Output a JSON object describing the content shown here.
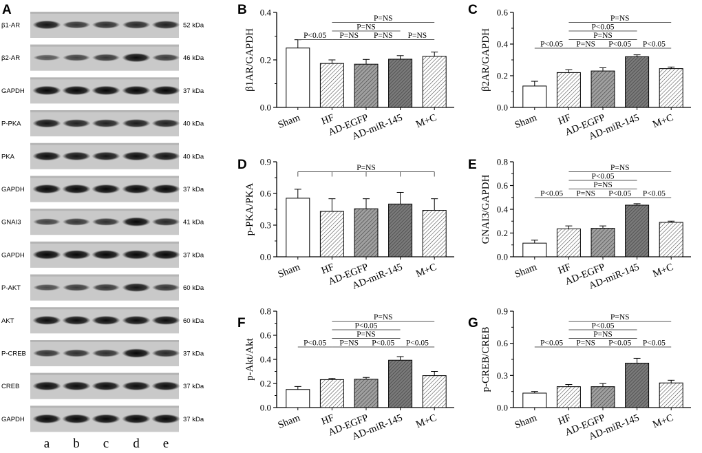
{
  "figure_letter": "A",
  "blot": {
    "rows": [
      {
        "name": "β1-AR",
        "size": "52 kDa",
        "intensity": [
          0.85,
          0.6,
          0.65,
          0.7,
          0.75
        ]
      },
      {
        "name": "β2-AR",
        "size": "46 kDa",
        "intensity": [
          0.35,
          0.5,
          0.6,
          0.9,
          0.55
        ]
      },
      {
        "name": "GAPDH",
        "size": "37 kDa",
        "intensity": [
          0.95,
          0.95,
          0.95,
          0.95,
          0.95
        ]
      },
      {
        "name": "P-PKA",
        "size": "40 kDa",
        "intensity": [
          0.85,
          0.75,
          0.75,
          0.8,
          0.75
        ]
      },
      {
        "name": "PKA",
        "size": "40 kDa",
        "intensity": [
          0.9,
          0.85,
          0.85,
          0.9,
          0.85
        ]
      },
      {
        "name": "GAPDH",
        "size": "37 kDa",
        "intensity": [
          0.95,
          0.95,
          0.95,
          0.95,
          0.95
        ]
      },
      {
        "name": "GNAI3",
        "size": "41 kDa",
        "intensity": [
          0.5,
          0.6,
          0.65,
          0.95,
          0.7
        ]
      },
      {
        "name": "GAPDH",
        "size": "37 kDa",
        "intensity": [
          0.95,
          0.95,
          0.95,
          0.95,
          0.95
        ]
      },
      {
        "name": "P-AKT",
        "size": "60 kDa",
        "intensity": [
          0.45,
          0.55,
          0.6,
          0.85,
          0.6
        ]
      },
      {
        "name": "AKT",
        "size": "60 kDa",
        "intensity": [
          0.9,
          0.9,
          0.9,
          0.9,
          0.9
        ]
      },
      {
        "name": "P-CREB",
        "size": "37 kDa",
        "intensity": [
          0.6,
          0.65,
          0.65,
          0.95,
          0.7
        ]
      },
      {
        "name": "CREB",
        "size": "37 kDa",
        "intensity": [
          0.9,
          0.9,
          0.9,
          0.9,
          0.9
        ]
      },
      {
        "name": "GAPDH",
        "size": "37 kDa",
        "intensity": [
          0.95,
          0.95,
          0.95,
          0.95,
          0.95
        ]
      }
    ],
    "lanes": [
      "a",
      "b",
      "c",
      "d",
      "e"
    ]
  },
  "chart_data": [
    {
      "panel": "B",
      "type": "bar",
      "ylabel": "β1AR/GAPDH",
      "categories": [
        "Sham",
        "HF",
        "AD-EGFP",
        "AD-miR-145",
        "M+C"
      ],
      "values": [
        0.25,
        0.185,
        0.182,
        0.203,
        0.215
      ],
      "errors": [
        0.035,
        0.015,
        0.02,
        0.015,
        0.018
      ],
      "ylim": [
        0,
        0.4
      ],
      "yticks": [
        "0.0",
        "0.2",
        "0.4"
      ],
      "annotations": [
        {
          "text": "P=NS",
          "from": 1,
          "to": 4,
          "level": 3
        },
        {
          "text": "P=NS",
          "from": 1,
          "to": 3,
          "level": 2
        },
        {
          "text": "P<0.05",
          "from": 0,
          "to": 1,
          "level": 1
        },
        {
          "text": "P=NS",
          "from": 1,
          "to": 2,
          "level": 1
        },
        {
          "text": "P=NS",
          "from": 2,
          "to": 3,
          "level": 1
        },
        {
          "text": "P=NS",
          "from": 3,
          "to": 4,
          "level": 1
        }
      ]
    },
    {
      "panel": "C",
      "type": "bar",
      "ylabel": "β2AR/GAPDH",
      "categories": [
        "Sham",
        "HF",
        "AD-EGFP",
        "AD-miR-145",
        "M+C"
      ],
      "values": [
        0.135,
        0.22,
        0.23,
        0.32,
        0.245
      ],
      "errors": [
        0.03,
        0.018,
        0.02,
        0.012,
        0.01
      ],
      "ylim": [
        0,
        0.6
      ],
      "yticks": [
        "0.0",
        "0.2",
        "0.4",
        "0.6"
      ],
      "annotations": [
        {
          "text": "P=NS",
          "from": 1,
          "to": 4,
          "level": 4
        },
        {
          "text": "P<0.05",
          "from": 1,
          "to": 3,
          "level": 3
        },
        {
          "text": "P=NS",
          "from": 1,
          "to": 3,
          "level": 2
        },
        {
          "text": "P<0.05",
          "from": 0,
          "to": 1,
          "level": 1
        },
        {
          "text": "P=NS",
          "from": 1,
          "to": 2,
          "level": 1
        },
        {
          "text": "P<0.05",
          "from": 2,
          "to": 3,
          "level": 1
        },
        {
          "text": "P<0.05",
          "from": 3,
          "to": 4,
          "level": 1
        }
      ]
    },
    {
      "panel": "D",
      "type": "bar",
      "ylabel": "p-PKA/PKA",
      "categories": [
        "Sham",
        "HF",
        "AD-EGFP",
        "AD-miR-145",
        "M+C"
      ],
      "values": [
        0.555,
        0.43,
        0.455,
        0.5,
        0.44
      ],
      "errors": [
        0.085,
        0.12,
        0.095,
        0.11,
        0.11
      ],
      "ylim": [
        0,
        0.9
      ],
      "yticks": [
        "0.0",
        "0.3",
        "0.6",
        "0.9"
      ],
      "annotations": [
        {
          "text": "P=NS",
          "from": 0,
          "to": 4,
          "level": 1,
          "ticks": [
            0,
            1,
            2,
            3,
            4
          ]
        }
      ]
    },
    {
      "panel": "E",
      "type": "bar",
      "ylabel": "GNAI3/GAPDH",
      "categories": [
        "Sham",
        "HF",
        "AD-EGFP",
        "AD-miR-145",
        "M+C"
      ],
      "values": [
        0.115,
        0.235,
        0.24,
        0.435,
        0.29
      ],
      "errors": [
        0.025,
        0.025,
        0.02,
        0.012,
        0.01
      ],
      "ylim": [
        0,
        0.8
      ],
      "yticks": [
        "0.0",
        "0.2",
        "0.4",
        "0.6",
        "0.8"
      ],
      "annotations": [
        {
          "text": "P=NS",
          "from": 1,
          "to": 4,
          "level": 4
        },
        {
          "text": "P<0.05",
          "from": 1,
          "to": 3,
          "level": 3
        },
        {
          "text": "P=NS",
          "from": 1,
          "to": 3,
          "level": 2
        },
        {
          "text": "P<0.05",
          "from": 0,
          "to": 1,
          "level": 1
        },
        {
          "text": "P=NS",
          "from": 1,
          "to": 2,
          "level": 1
        },
        {
          "text": "P<0.05",
          "from": 2,
          "to": 3,
          "level": 1
        },
        {
          "text": "P<0.05",
          "from": 3,
          "to": 4,
          "level": 1
        }
      ]
    },
    {
      "panel": "F",
      "type": "bar",
      "ylabel": "p-Akt/Akt",
      "categories": [
        "Sham",
        "HF",
        "AD-EGFP",
        "AD-miR-145",
        "M+C"
      ],
      "values": [
        0.15,
        0.232,
        0.235,
        0.393,
        0.265
      ],
      "errors": [
        0.025,
        0.01,
        0.015,
        0.03,
        0.035
      ],
      "ylim": [
        0,
        0.8
      ],
      "yticks": [
        "0.0",
        "0.2",
        "0.4",
        "0.6",
        "0.8"
      ],
      "annotations": [
        {
          "text": "P=NS",
          "from": 1,
          "to": 4,
          "level": 4
        },
        {
          "text": "P<0.05",
          "from": 1,
          "to": 3,
          "level": 3
        },
        {
          "text": "P=NS",
          "from": 1,
          "to": 3,
          "level": 2
        },
        {
          "text": "P<0.05",
          "from": 0,
          "to": 1,
          "level": 1
        },
        {
          "text": "P=NS",
          "from": 1,
          "to": 2,
          "level": 1
        },
        {
          "text": "P<0.05",
          "from": 2,
          "to": 3,
          "level": 1
        },
        {
          "text": "P<0.05",
          "from": 3,
          "to": 4,
          "level": 1
        }
      ]
    },
    {
      "panel": "G",
      "type": "bar",
      "ylabel": "p-CREB/CREB",
      "categories": [
        "Sham",
        "HF",
        "AD-EGFP",
        "AD-miR-145",
        "M+C"
      ],
      "values": [
        0.135,
        0.195,
        0.195,
        0.415,
        0.23
      ],
      "errors": [
        0.015,
        0.02,
        0.03,
        0.045,
        0.025
      ],
      "ylim": [
        0,
        0.9
      ],
      "yticks": [
        "0.0",
        "0.3",
        "0.6",
        "0.9"
      ],
      "annotations": [
        {
          "text": "P=NS",
          "from": 1,
          "to": 4,
          "level": 4
        },
        {
          "text": "P<0.05",
          "from": 1,
          "to": 3,
          "level": 3
        },
        {
          "text": "P=NS",
          "from": 1,
          "to": 3,
          "level": 2
        },
        {
          "text": "P<0.05",
          "from": 0,
          "to": 1,
          "level": 1
        },
        {
          "text": "P=NS",
          "from": 1,
          "to": 2,
          "level": 1
        },
        {
          "text": "P<0.05",
          "from": 2,
          "to": 3,
          "level": 1
        },
        {
          "text": "P<0.05",
          "from": 3,
          "to": 4,
          "level": 1
        }
      ]
    }
  ]
}
